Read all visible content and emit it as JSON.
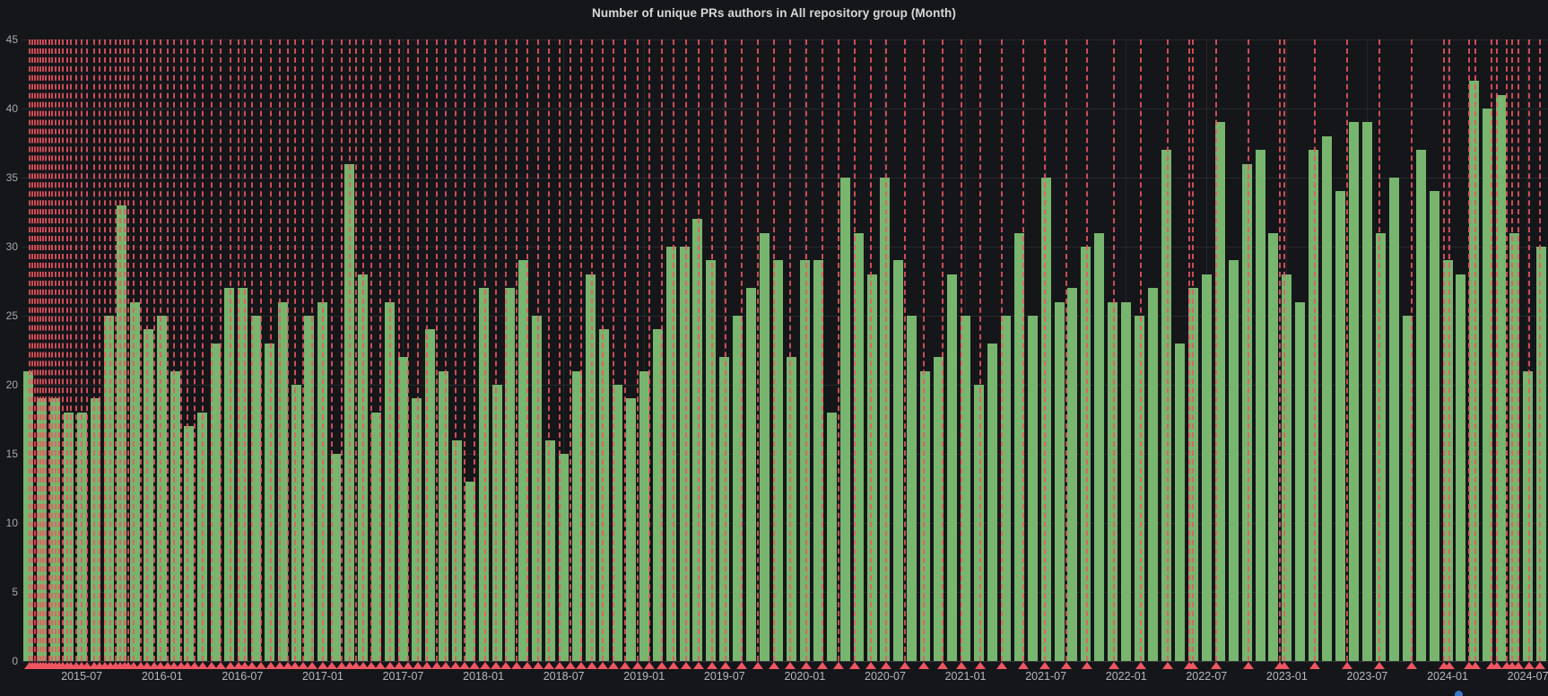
{
  "panel": {
    "title": "Number of unique PRs authors in All repository group (Month)"
  },
  "chart_data": {
    "type": "bar",
    "title": "Number of unique PRs authors in All repository group (Month)",
    "xlabel": "",
    "ylabel": "",
    "ylim": [
      0,
      45
    ],
    "grid": true,
    "y_ticks": [
      0,
      5,
      10,
      15,
      20,
      25,
      30,
      35,
      40,
      45
    ],
    "x": [
      "2015-03",
      "2015-04",
      "2015-05",
      "2015-06",
      "2015-07",
      "2015-08",
      "2015-09",
      "2015-10",
      "2015-11",
      "2015-12",
      "2016-01",
      "2016-02",
      "2016-03",
      "2016-04",
      "2016-05",
      "2016-06",
      "2016-07",
      "2016-08",
      "2016-09",
      "2016-10",
      "2016-11",
      "2016-12",
      "2017-01",
      "2017-02",
      "2017-03",
      "2017-04",
      "2017-05",
      "2017-06",
      "2017-07",
      "2017-08",
      "2017-09",
      "2017-10",
      "2017-11",
      "2017-12",
      "2018-01",
      "2018-02",
      "2018-03",
      "2018-04",
      "2018-05",
      "2018-06",
      "2018-07",
      "2018-08",
      "2018-09",
      "2018-10",
      "2018-11",
      "2018-12",
      "2019-01",
      "2019-02",
      "2019-03",
      "2019-04",
      "2019-05",
      "2019-06",
      "2019-07",
      "2019-08",
      "2019-09",
      "2019-10",
      "2019-11",
      "2019-12",
      "2020-01",
      "2020-02",
      "2020-03",
      "2020-04",
      "2020-05",
      "2020-06",
      "2020-07",
      "2020-08",
      "2020-09",
      "2020-10",
      "2020-11",
      "2020-12",
      "2021-01",
      "2021-02",
      "2021-03",
      "2021-04",
      "2021-05",
      "2021-06",
      "2021-07",
      "2021-08",
      "2021-09",
      "2021-10",
      "2021-11",
      "2021-12",
      "2022-01",
      "2022-02",
      "2022-03",
      "2022-04",
      "2022-05",
      "2022-06",
      "2022-07",
      "2022-08",
      "2022-09",
      "2022-10",
      "2022-11",
      "2022-12",
      "2023-01",
      "2023-02",
      "2023-03",
      "2023-04",
      "2023-05",
      "2023-06",
      "2023-07",
      "2023-08",
      "2023-09",
      "2023-10",
      "2023-11",
      "2023-12",
      "2024-01",
      "2024-02",
      "2024-03",
      "2024-04",
      "2024-05",
      "2024-06",
      "2024-07",
      "2024-08"
    ],
    "values": [
      21,
      19,
      19,
      18,
      18,
      19,
      25,
      33,
      26,
      24,
      25,
      21,
      17,
      18,
      23,
      27,
      27,
      25,
      23,
      26,
      20,
      25,
      26,
      15,
      36,
      28,
      18,
      26,
      22,
      19,
      24,
      21,
      16,
      13,
      27,
      20,
      27,
      29,
      25,
      16,
      15,
      21,
      28,
      24,
      20,
      19,
      21,
      24,
      30,
      30,
      32,
      29,
      22,
      25,
      27,
      31,
      29,
      22,
      29,
      29,
      18,
      35,
      31,
      28,
      35,
      29,
      25,
      21,
      22,
      28,
      25,
      20,
      23,
      25,
      31,
      25,
      35,
      26,
      27,
      30,
      31,
      26,
      26,
      25,
      27,
      37,
      23,
      27,
      28,
      39,
      29,
      36,
      37,
      31,
      28,
      26,
      37,
      38,
      34,
      39,
      39,
      31,
      35,
      25,
      37,
      34,
      29,
      28,
      42,
      40,
      41,
      31,
      21,
      30
    ],
    "x_ticks": [
      {
        "label": "2015-07",
        "index": 4
      },
      {
        "label": "2016-01",
        "index": 10
      },
      {
        "label": "2016-07",
        "index": 16
      },
      {
        "label": "2017-01",
        "index": 22
      },
      {
        "label": "2017-07",
        "index": 28
      },
      {
        "label": "2018-01",
        "index": 34
      },
      {
        "label": "2018-07",
        "index": 40
      },
      {
        "label": "2019-01",
        "index": 46
      },
      {
        "label": "2019-07",
        "index": 52
      },
      {
        "label": "2020-01",
        "index": 58
      },
      {
        "label": "2020-07",
        "index": 64
      },
      {
        "label": "2021-01",
        "index": 70
      },
      {
        "label": "2021-07",
        "index": 76
      },
      {
        "label": "2022-01",
        "index": 82
      },
      {
        "label": "2022-07",
        "index": 88
      },
      {
        "label": "2023-01",
        "index": 94
      },
      {
        "label": "2023-07",
        "index": 100
      },
      {
        "label": "2024-01",
        "index": 106
      },
      {
        "label": "2024-07",
        "index": 112
      }
    ],
    "annotations_month_index": [
      0.1,
      0.3,
      0.5,
      0.7,
      0.9,
      1.1,
      1.3,
      1.55,
      1.8,
      2.05,
      2.3,
      2.6,
      2.9,
      3.2,
      3.6,
      4.0,
      4.4,
      4.9,
      5.3,
      5.7,
      6.1,
      6.5,
      6.9,
      7.2,
      7.5,
      7.9,
      8.4,
      8.9,
      9.4,
      9.9,
      10.4,
      10.9,
      11.4,
      11.9,
      12.4,
      13.0,
      13.7,
      14.4,
      15.1,
      15.7,
      16.2,
      16.7,
      17.4,
      18.1,
      18.8,
      19.4,
      19.9,
      20.5,
      21.2,
      22.0,
      22.7,
      23.4,
      24.0,
      24.5,
      25.0,
      25.6,
      26.3,
      27.0,
      27.7,
      28.4,
      29.1,
      29.8,
      30.5,
      31.2,
      31.9,
      32.6,
      33.3,
      34.1,
      34.9,
      35.7,
      36.5,
      37.3,
      38.1,
      38.9,
      39.7,
      40.5,
      41.3,
      42.1,
      42.9,
      43.7,
      44.6,
      45.5,
      46.4,
      47.3,
      48.2,
      49.1,
      50.1,
      51.1,
      52.1,
      53.3,
      54.5,
      55.7,
      56.9,
      58.1,
      59.3,
      60.5,
      61.7,
      62.9,
      64.1,
      65.5,
      66.9,
      68.3,
      69.7,
      71.1,
      72.7,
      74.3,
      75.9,
      77.5,
      79.1,
      81.1,
      83.1,
      85.1,
      86.7,
      87.0,
      88.7,
      91.1,
      93.5,
      93.8,
      96.1,
      98.5,
      100.9,
      103.3,
      105.7,
      106.1,
      107.6,
      108.1,
      109.3,
      109.7,
      110.4,
      110.8,
      111.3,
      112.1,
      112.9
    ],
    "colors": {
      "background": "#141619",
      "bar": "#78b56e",
      "annotation": "#ef5661",
      "grid": "rgba(204,204,220,0.10)",
      "axis_text": "#a5a9ae",
      "title_text": "#d8d9da",
      "legend_dot": "#3a76c9"
    },
    "legend_position": "bottom"
  }
}
